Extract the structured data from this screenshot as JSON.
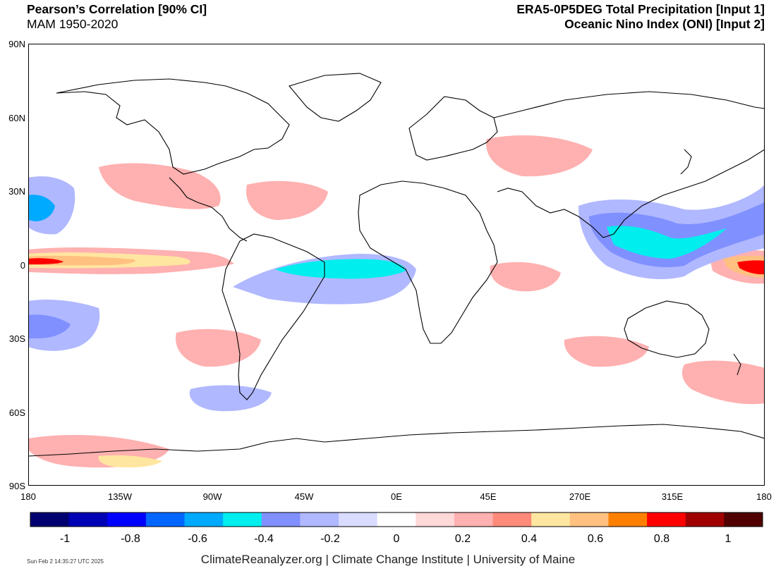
{
  "header": {
    "left_title": "Pearson’s Correlation [90% CI]",
    "left_subtitle": "MAM 1950-2020",
    "right_title": "ERA5-0P5DEG Total Precipitation [Input 1]",
    "right_subtitle": "Oceanic Nino Index (ONI) [Input 2]"
  },
  "map": {
    "lat_labels": [
      "90N",
      "60N",
      "30N",
      "0",
      "30S",
      "60S",
      "90S"
    ],
    "lon_labels": [
      "180",
      "135W",
      "90W",
      "45W",
      "0E",
      "45E",
      "270E",
      "315E",
      "180"
    ]
  },
  "colorbar": {
    "colors": [
      "#000070",
      "#0000b4",
      "#0000ff",
      "#0066ff",
      "#00aaff",
      "#00eeee",
      "#8090ff",
      "#b0b8ff",
      "#dadcff",
      "#ffffff",
      "#ffd8d8",
      "#ffb0b0",
      "#ff8a7a",
      "#ffe6a0",
      "#ffc080",
      "#ff8000",
      "#ff0000",
      "#a00000",
      "#500000"
    ],
    "labels": [
      "-1",
      "-0.8",
      "-0.6",
      "-0.4",
      "-0.2",
      "0",
      "0.2",
      "0.4",
      "0.6",
      "0.8",
      "1"
    ]
  },
  "footer": {
    "timestamp": "Sun Feb  2 14:35:27 UTC 2025",
    "credit": "ClimateReanalyzer.org | Climate Change Institute | University of Maine"
  }
}
